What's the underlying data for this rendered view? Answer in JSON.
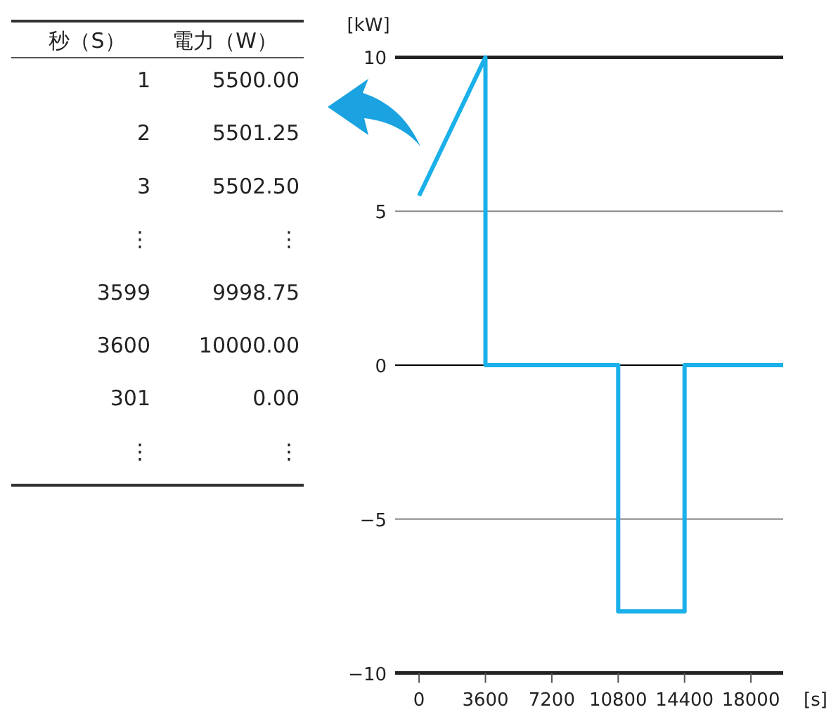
{
  "chart_data": [
    {
      "type": "other",
      "annotations": [
        "秒（S）",
        "電力（W）",
        "1",
        "5500.00",
        "2",
        "5501.25",
        "3",
        "5502.50",
        "⋮",
        "⋮",
        "3599",
        "9998.75",
        "3600",
        "10000.00",
        "301",
        "0.00",
        "⋮",
        "⋮"
      ]
    },
    {
      "type": "line",
      "xlabel": "[s]",
      "ylabel": "[kW]",
      "series": [
        {
          "color": "#1ab0ea",
          "x": [
            0,
            3600,
            3600,
            10800,
            10800,
            14400,
            14400,
            19750
          ],
          "values": [
            5.5,
            10,
            0,
            0,
            -8,
            -8,
            0,
            0
          ]
        }
      ],
      "xlim": [
        -1300,
        19750
      ],
      "ylim": [
        -10,
        10
      ],
      "xticks": [
        0,
        3600,
        7200,
        10800,
        14400,
        18000
      ],
      "yticks": [
        10,
        5,
        0,
        {
          "value": -5,
          "label": "−5"
        },
        {
          "value": -10,
          "label": "−10"
        }
      ],
      "grid": "y",
      "ref_lines": [
        {
          "axis": "y",
          "value": 0,
          "color": "#000000"
        }
      ]
    }
  ]
}
